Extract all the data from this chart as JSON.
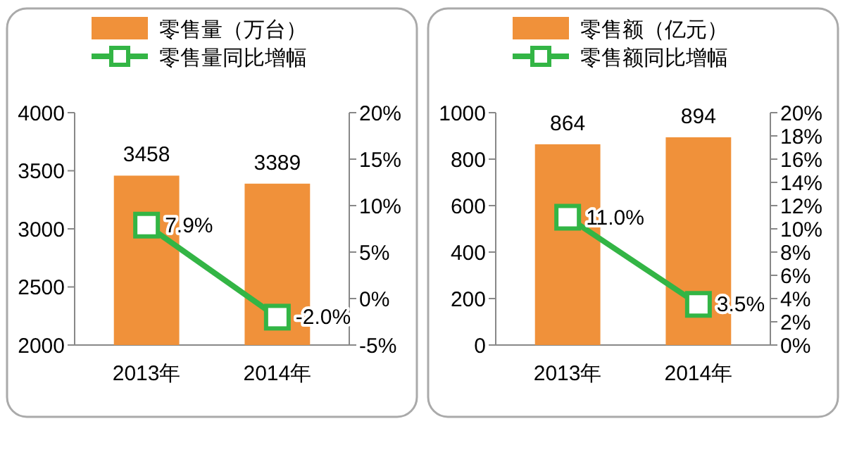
{
  "chart_data": [
    {
      "type": "bar",
      "categories": [
        "2013年",
        "2014年"
      ],
      "legend": "top",
      "ylim": [
        2000,
        4000
      ],
      "yticks": [
        2000,
        2500,
        3000,
        3500,
        4000
      ],
      "y2lim": [
        -5,
        20
      ],
      "y2ticks": [
        {
          "value": -5,
          "label": "-5%"
        },
        {
          "value": 0,
          "label": "0%"
        },
        {
          "value": 5,
          "label": "5%"
        },
        {
          "value": 10,
          "label": "10%"
        },
        {
          "value": 15,
          "label": "15%"
        },
        {
          "value": 20,
          "label": "20%"
        }
      ],
      "series": [
        {
          "name": "零售量（万台）",
          "color": "#f0913a",
          "values": [
            3458,
            3389
          ],
          "value_labels": [
            "3458",
            "3389"
          ]
        },
        {
          "name": "零售量同比增幅",
          "type": "line",
          "axis": "y2",
          "color": "#33b545",
          "marker": "square",
          "line_style": "solid",
          "values": [
            7.9,
            -2.0
          ],
          "value_labels": [
            "7.9%",
            "-2.0%"
          ]
        }
      ]
    },
    {
      "type": "bar",
      "categories": [
        "2013年",
        "2014年"
      ],
      "legend": "top",
      "ylim": [
        0,
        1000
      ],
      "yticks": [
        0,
        200,
        400,
        600,
        800,
        1000
      ],
      "y2lim": [
        0,
        20
      ],
      "y2ticks": [
        {
          "value": 0,
          "label": "0%"
        },
        {
          "value": 2,
          "label": "2%"
        },
        {
          "value": 4,
          "label": "4%"
        },
        {
          "value": 6,
          "label": "6%"
        },
        {
          "value": 8,
          "label": "8%"
        },
        {
          "value": 10,
          "label": "10%"
        },
        {
          "value": 12,
          "label": "12%"
        },
        {
          "value": 14,
          "label": "14%"
        },
        {
          "value": 16,
          "label": "16%"
        },
        {
          "value": 18,
          "label": "18%"
        },
        {
          "value": 20,
          "label": "20%"
        }
      ],
      "series": [
        {
          "name": "零售额（亿元）",
          "color": "#f0913a",
          "values": [
            864,
            894
          ],
          "value_labels": [
            "864",
            "894"
          ]
        },
        {
          "name": "零售额同比增幅",
          "type": "line",
          "axis": "y2",
          "color": "#33b545",
          "marker": "square",
          "line_style": "solid",
          "values": [
            11.0,
            3.5
          ],
          "value_labels": [
            "11.0%",
            "3.5%"
          ]
        }
      ]
    }
  ]
}
